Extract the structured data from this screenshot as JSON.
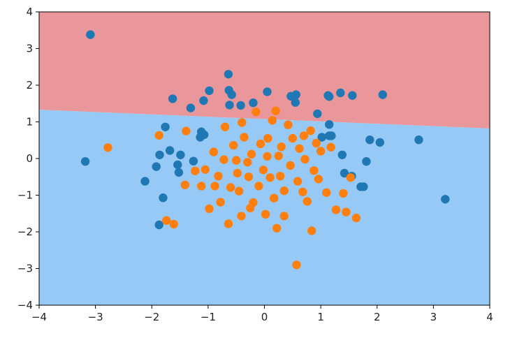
{
  "chart_data": {
    "type": "scatter",
    "title": "",
    "xlabel": "",
    "ylabel": "",
    "xlim": [
      -4,
      4
    ],
    "ylim": [
      -4,
      4
    ],
    "grid": false,
    "legend": "none",
    "x_ticks": [
      "−4",
      "−3",
      "−2",
      "−1",
      "0",
      "1",
      "2",
      "3",
      "4"
    ],
    "y_ticks": [
      "4",
      "3",
      "2",
      "1",
      "0",
      "−1",
      "−2",
      "−3",
      "−4"
    ],
    "decision_regions": {
      "boundary_line": [
        [
          -4,
          1.33
        ],
        [
          4,
          0.82
        ]
      ],
      "upper_color": "#e9979b",
      "lower_color": "#96c9f5"
    },
    "series": [
      {
        "color": "#1f77b4",
        "points": [
          [
            -3.09,
            3.38
          ],
          [
            -3.18,
            -0.08
          ],
          [
            -2.12,
            -0.62
          ],
          [
            -1.92,
            -0.22
          ],
          [
            -1.86,
            0.1
          ],
          [
            -1.76,
            0.86
          ],
          [
            -1.8,
            -1.07
          ],
          [
            -1.87,
            -1.81
          ],
          [
            -1.68,
            0.22
          ],
          [
            -1.63,
            1.63
          ],
          [
            -1.54,
            -0.17
          ],
          [
            -1.52,
            -0.38
          ],
          [
            -1.49,
            0.1
          ],
          [
            -1.31,
            1.38
          ],
          [
            -1.26,
            -0.07
          ],
          [
            -1.12,
            0.73
          ],
          [
            -1.14,
            0.58
          ],
          [
            -1.07,
            0.65
          ],
          [
            -1.08,
            1.58
          ],
          [
            -0.98,
            1.85
          ],
          [
            -0.64,
            2.3
          ],
          [
            -0.63,
            1.86
          ],
          [
            -0.58,
            1.74
          ],
          [
            -0.62,
            1.46
          ],
          [
            -0.42,
            1.45
          ],
          [
            -0.2,
            1.52
          ],
          [
            0.05,
            1.82
          ],
          [
            0.47,
            1.7
          ],
          [
            0.56,
            1.74
          ],
          [
            0.55,
            1.53
          ],
          [
            0.94,
            1.22
          ],
          [
            1.13,
            1.72
          ],
          [
            1.15,
            1.69
          ],
          [
            1.35,
            1.79
          ],
          [
            1.56,
            1.72
          ],
          [
            2.1,
            1.74
          ],
          [
            1.15,
            0.93
          ],
          [
            1.02,
            0.58
          ],
          [
            1.15,
            0.62
          ],
          [
            1.19,
            0.62
          ],
          [
            1.38,
            0.1
          ],
          [
            1.42,
            -0.4
          ],
          [
            1.55,
            -0.48
          ],
          [
            1.71,
            -0.77
          ],
          [
            1.76,
            -0.77
          ],
          [
            1.81,
            -0.08
          ],
          [
            1.87,
            0.51
          ],
          [
            2.05,
            0.44
          ],
          [
            2.74,
            0.51
          ],
          [
            3.21,
            -1.11
          ]
        ]
      },
      {
        "color": "#ff7f0e",
        "points": [
          [
            -2.78,
            0.3
          ],
          [
            -1.87,
            0.63
          ],
          [
            -1.74,
            -1.69
          ],
          [
            -1.61,
            -1.79
          ],
          [
            -1.41,
            -0.72
          ],
          [
            -1.39,
            0.75
          ],
          [
            -1.23,
            -0.34
          ],
          [
            -1.12,
            -0.75
          ],
          [
            -1.05,
            -0.3
          ],
          [
            -0.98,
            -1.37
          ],
          [
            -0.88,
            -0.75
          ],
          [
            -0.82,
            -0.48
          ],
          [
            -0.78,
            -1.19
          ],
          [
            -0.72,
            -0.03
          ],
          [
            -0.64,
            -1.78
          ],
          [
            -0.6,
            -0.79
          ],
          [
            -0.55,
            0.36
          ],
          [
            -0.48,
            -0.4
          ],
          [
            -0.45,
            -0.89
          ],
          [
            -0.41,
            -1.57
          ],
          [
            -0.36,
            0.58
          ],
          [
            -0.3,
            -0.1
          ],
          [
            -0.28,
            -0.5
          ],
          [
            -0.23,
            0.12
          ],
          [
            -0.2,
            -1.2
          ],
          [
            -0.15,
            1.27
          ],
          [
            -0.1,
            -0.75
          ],
          [
            -0.07,
            0.4
          ],
          [
            -0.02,
            -0.31
          ],
          [
            0.02,
            -1.52
          ],
          [
            0.06,
            0.55
          ],
          [
            0.1,
            -0.52
          ],
          [
            0.14,
            1.04
          ],
          [
            0.17,
            -1.08
          ],
          [
            0.22,
            -1.9
          ],
          [
            0.25,
            0.07
          ],
          [
            0.28,
            -0.48
          ],
          [
            0.3,
            0.32
          ],
          [
            0.35,
            -1.57
          ],
          [
            0.42,
            0.92
          ],
          [
            0.46,
            -0.19
          ],
          [
            0.5,
            0.55
          ],
          [
            0.57,
            -2.9
          ],
          [
            0.59,
            -0.62
          ],
          [
            0.62,
            0.27
          ],
          [
            0.68,
            -0.91
          ],
          [
            0.72,
            -0.02
          ],
          [
            0.76,
            -1.17
          ],
          [
            0.82,
            0.76
          ],
          [
            0.84,
            -1.97
          ],
          [
            0.88,
            -0.33
          ],
          [
            0.92,
            0.42
          ],
          [
            0.96,
            -0.56
          ],
          [
            1.0,
            0.2
          ],
          [
            1.1,
            -0.93
          ],
          [
            1.18,
            0.31
          ],
          [
            1.27,
            -1.4
          ],
          [
            1.4,
            -0.95
          ],
          [
            1.45,
            -1.46
          ],
          [
            1.53,
            -0.52
          ],
          [
            1.63,
            -1.62
          ],
          [
            -0.9,
            0.18
          ],
          [
            -0.7,
            0.86
          ],
          [
            -0.4,
            0.98
          ],
          [
            0.2,
            1.3
          ],
          [
            0.35,
            -0.88
          ],
          [
            -0.25,
            -1.35
          ],
          [
            0.7,
            0.62
          ],
          [
            0.05,
            0.06
          ],
          [
            -0.5,
            -0.05
          ]
        ]
      }
    ]
  }
}
